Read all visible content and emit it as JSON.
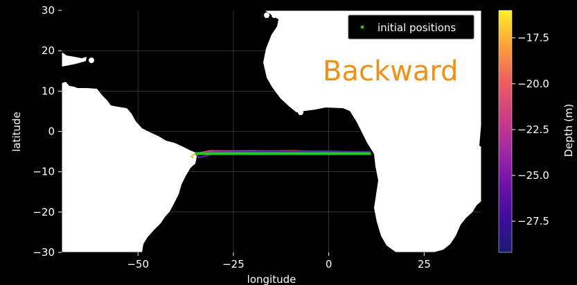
{
  "chart_data": {
    "type": "line",
    "title": "",
    "xlabel": "longitude",
    "ylabel": "latitude",
    "xlim": [
      -70,
      40
    ],
    "ylim": [
      -30,
      30
    ],
    "x_ticks": [
      -50,
      -25,
      0,
      25
    ],
    "x_tick_labels": [
      "−50",
      "−25",
      "0",
      "25"
    ],
    "y_ticks": [
      30,
      20,
      10,
      0,
      -10,
      -20,
      -30
    ],
    "y_tick_labels": [
      "30",
      "20",
      "10",
      "0",
      "−10",
      "−20",
      "−30"
    ],
    "grid": true,
    "overlay_text": "Backward",
    "legend": {
      "position": "top-right",
      "entries": [
        "initial positions"
      ]
    },
    "initial_positions": {
      "label": "initial positions",
      "color": "#22cc22",
      "x": [
        -35,
        11
      ],
      "y": [
        -5.5,
        -5.5
      ]
    },
    "trajectories": [
      {
        "color": "#e84a5f",
        "x": [
          -35,
          -31,
          -20,
          -10,
          0,
          11
        ],
        "y": [
          -5.5,
          -4.8,
          -4.9,
          -4.8,
          -5.0,
          -5.2
        ]
      },
      {
        "color": "#9b3fa5",
        "x": [
          -35,
          -30,
          -20,
          -10,
          0,
          11
        ],
        "y": [
          -5.6,
          -4.9,
          -4.8,
          -4.9,
          -4.9,
          -5.1
        ]
      },
      {
        "color": "#3a2a9a",
        "x": [
          -35,
          -30,
          -15,
          0,
          11
        ],
        "y": [
          -5.4,
          -5.2,
          -5.0,
          -5.0,
          -5.0
        ]
      },
      {
        "color": "#6a1aa0",
        "x": [
          -35,
          -34,
          -32,
          -30
        ],
        "y": [
          -5.5,
          -6.5,
          -6.0,
          -5.5
        ]
      },
      {
        "color": "#f0c020",
        "x": [
          -35,
          -36,
          -35.5
        ],
        "y": [
          -5.5,
          -6.2,
          -6.6
        ]
      }
    ],
    "colorbar": {
      "label": "Depth (m)",
      "range": [
        -29.2,
        -16.0
      ],
      "ticks": [
        -17.5,
        -20.0,
        -22.5,
        -25.0,
        -27.5
      ],
      "tick_labels": [
        "−17.5",
        "−20.0",
        "−22.5",
        "−25.0",
        "−27.5"
      ],
      "colormap": [
        "#fcf026",
        "#fca338",
        "#f0605d",
        "#d03f81",
        "#a42aa3",
        "#7012a9",
        "#3f0d9c",
        "#1d1a75"
      ]
    },
    "land_color": "#ffffff",
    "ocean_color": "#000000"
  }
}
